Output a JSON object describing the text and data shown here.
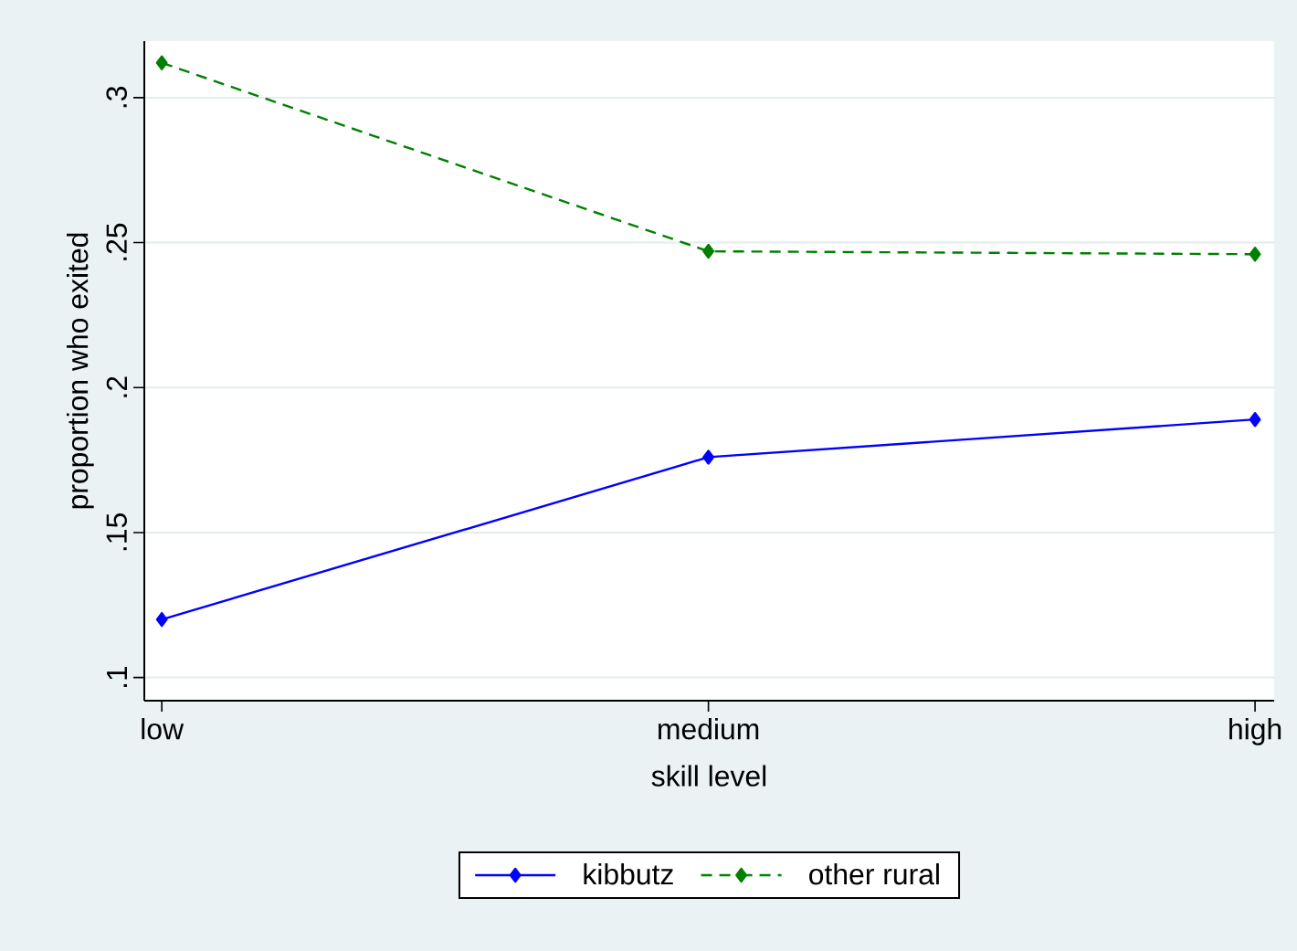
{
  "chart_data": {
    "type": "line",
    "xlabel": "skill level",
    "ylabel": "proportion who exited",
    "categories": [
      "low",
      "medium",
      "high"
    ],
    "series": [
      {
        "name": "kibbutz",
        "color": "#0000ff",
        "values": [
          0.12,
          0.176,
          0.189
        ],
        "line_style": "solid"
      },
      {
        "name": "other rural",
        "color": "#008000",
        "values": [
          0.312,
          0.247,
          0.246
        ],
        "line_style": "dashed"
      }
    ],
    "ylim": [
      0.092,
      0.3195
    ],
    "yticks": [
      {
        "value": 0.1,
        "label": ".1"
      },
      {
        "value": 0.15,
        "label": ".15"
      },
      {
        "value": 0.2,
        "label": ".2"
      },
      {
        "value": 0.25,
        "label": ".25"
      },
      {
        "value": 0.3,
        "label": ".3"
      }
    ],
    "grid": "y",
    "legend": "bottom",
    "marker": "diamond"
  }
}
